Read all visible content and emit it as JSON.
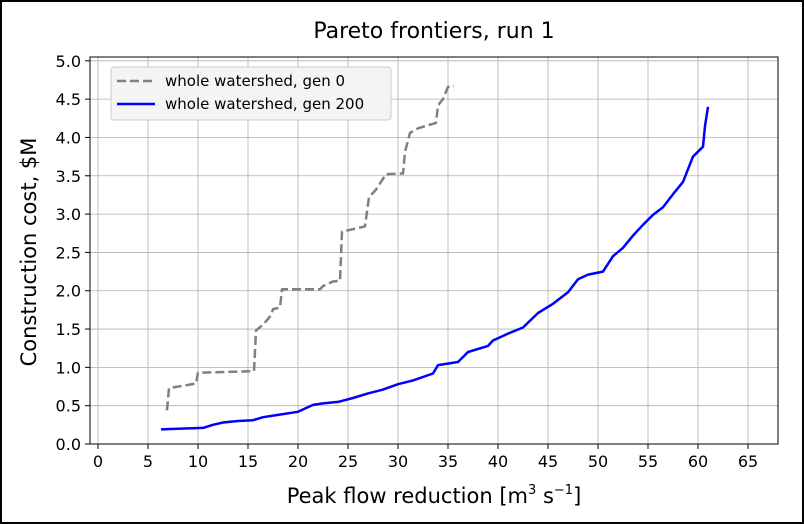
{
  "chart_data": {
    "type": "line",
    "title": "Pareto frontiers, run 1",
    "xlabel": "Peak flow reduction [m",
    "xlabel_sup1": "3",
    "xlabel_mid": " s",
    "xlabel_sup2": "−1",
    "xlabel_end": "]",
    "ylabel": "Construction cost, $M",
    "xlim": [
      -0.8,
      68
    ],
    "ylim": [
      0,
      5.05
    ],
    "xticks": [
      "0",
      "5",
      "10",
      "15",
      "20",
      "25",
      "30",
      "35",
      "40",
      "45",
      "50",
      "55",
      "60",
      "65"
    ],
    "yticks": [
      "0.0",
      "0.5",
      "1.0",
      "1.5",
      "2.0",
      "2.5",
      "3.0",
      "3.5",
      "4.0",
      "4.5",
      "5.0"
    ],
    "grid": true,
    "legend_position": "top-left",
    "series": [
      {
        "name": "whole watershed, gen 0",
        "color": "#808080",
        "style": "dashed",
        "points": [
          [
            6.9,
            0.44
          ],
          [
            7.1,
            0.73
          ],
          [
            8.5,
            0.76
          ],
          [
            9.8,
            0.79
          ],
          [
            10.0,
            0.93
          ],
          [
            15.6,
            0.95
          ],
          [
            15.8,
            1.48
          ],
          [
            16.6,
            1.57
          ],
          [
            17.3,
            1.68
          ],
          [
            17.5,
            1.76
          ],
          [
            18.2,
            1.78
          ],
          [
            18.4,
            2.02
          ],
          [
            22.2,
            2.02
          ],
          [
            22.5,
            2.06
          ],
          [
            23.5,
            2.12
          ],
          [
            24.2,
            2.13
          ],
          [
            24.4,
            2.77
          ],
          [
            26.7,
            2.84
          ],
          [
            27.1,
            3.22
          ],
          [
            27.8,
            3.32
          ],
          [
            28.8,
            3.52
          ],
          [
            30.5,
            3.53
          ],
          [
            30.7,
            3.81
          ],
          [
            31.2,
            4.06
          ],
          [
            32.0,
            4.12
          ],
          [
            33.8,
            4.19
          ],
          [
            34.0,
            4.42
          ],
          [
            34.5,
            4.5
          ],
          [
            35.0,
            4.66
          ],
          [
            35.6,
            4.67
          ]
        ]
      },
      {
        "name": "whole watershed, gen 200",
        "color": "#0000ff",
        "style": "solid",
        "points": [
          [
            6.3,
            0.19
          ],
          [
            8.0,
            0.2
          ],
          [
            10.5,
            0.21
          ],
          [
            11.5,
            0.25
          ],
          [
            12.5,
            0.28
          ],
          [
            14.0,
            0.3
          ],
          [
            15.5,
            0.31
          ],
          [
            16.5,
            0.35
          ],
          [
            18.0,
            0.38
          ],
          [
            20.0,
            0.42
          ],
          [
            21.5,
            0.51
          ],
          [
            22.5,
            0.53
          ],
          [
            24.0,
            0.55
          ],
          [
            25.5,
            0.6
          ],
          [
            27.0,
            0.66
          ],
          [
            28.5,
            0.71
          ],
          [
            30.0,
            0.78
          ],
          [
            31.5,
            0.83
          ],
          [
            33.5,
            0.92
          ],
          [
            34.0,
            1.03
          ],
          [
            36.0,
            1.07
          ],
          [
            37.0,
            1.2
          ],
          [
            39.0,
            1.28
          ],
          [
            39.5,
            1.35
          ],
          [
            41.0,
            1.44
          ],
          [
            42.5,
            1.52
          ],
          [
            44.0,
            1.71
          ],
          [
            45.5,
            1.83
          ],
          [
            47.0,
            1.98
          ],
          [
            48.0,
            2.15
          ],
          [
            49.0,
            2.21
          ],
          [
            50.5,
            2.25
          ],
          [
            51.5,
            2.45
          ],
          [
            52.5,
            2.56
          ],
          [
            53.5,
            2.72
          ],
          [
            54.5,
            2.86
          ],
          [
            55.5,
            2.99
          ],
          [
            56.5,
            3.09
          ],
          [
            57.5,
            3.26
          ],
          [
            58.5,
            3.42
          ],
          [
            59.5,
            3.75
          ],
          [
            60.5,
            3.88
          ],
          [
            60.7,
            4.15
          ],
          [
            61.0,
            4.4
          ]
        ]
      }
    ]
  }
}
